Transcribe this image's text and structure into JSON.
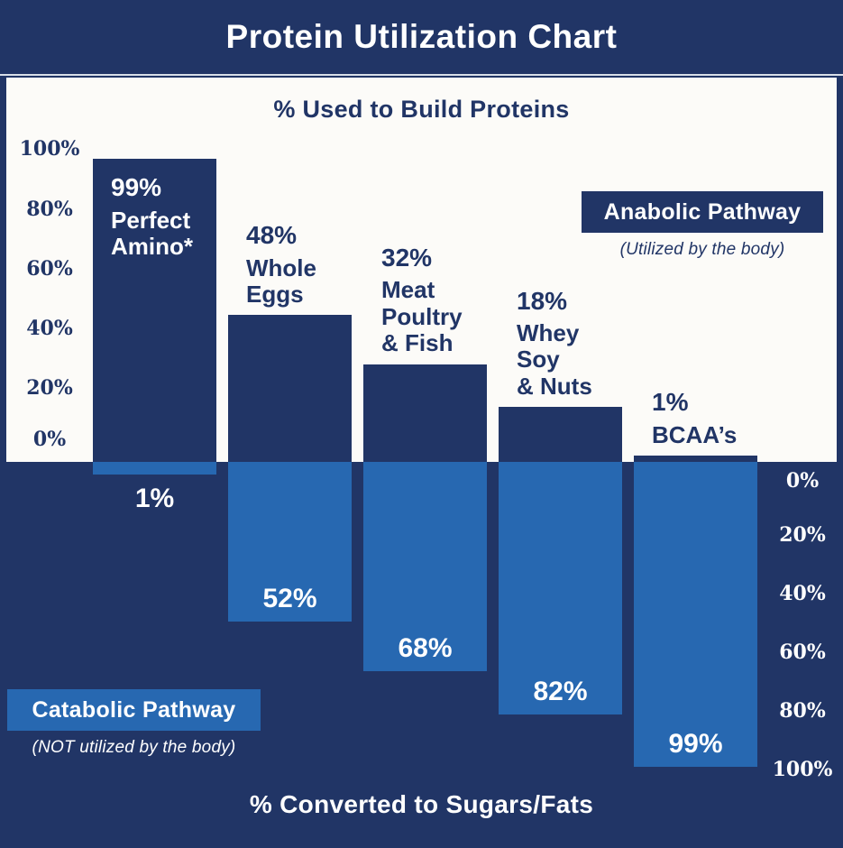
{
  "title": "Protein Utilization Chart",
  "top_section": {
    "axis_title": "% Used to Build Proteins"
  },
  "bottom_section": {
    "axis_title": "% Converted to Sugars/Fats"
  },
  "legend": {
    "anabolic": {
      "label": "Anabolic Pathway",
      "sublabel": "(Utilized by the body)"
    },
    "catabolic": {
      "label": "Catabolic Pathway",
      "sublabel": "(NOT utilized by the body)"
    }
  },
  "bars": [
    {
      "up_pct": "99%",
      "name": "Perfect\nAmino*",
      "down_pct": "1%"
    },
    {
      "up_pct": "48%",
      "name": "Whole\nEggs",
      "down_pct": "52%"
    },
    {
      "up_pct": "32%",
      "name": "Meat\nPoultry\n& Fish",
      "down_pct": "68%"
    },
    {
      "up_pct": "18%",
      "name": "Whey\nSoy\n& Nuts",
      "down_pct": "82%"
    },
    {
      "up_pct": "1%",
      "name": "BCAA’s",
      "down_pct": "99%"
    }
  ],
  "chart_data": {
    "type": "bar",
    "title": "Protein Utilization Chart",
    "categories": [
      "Perfect Amino*",
      "Whole Eggs",
      "Meat Poultry & Fish",
      "Whey Soy & Nuts",
      "BCAA’s"
    ],
    "series": [
      {
        "name": "% Used to Build Proteins (Anabolic Pathway, upward bars)",
        "values": [
          99,
          48,
          32,
          18,
          1
        ]
      },
      {
        "name": "% Converted to Sugars/Fats (Catabolic Pathway, downward bars)",
        "values": [
          1,
          52,
          68,
          82,
          99
        ]
      }
    ],
    "left_axis_ticks": [
      "100%",
      "80%",
      "60%",
      "40%",
      "20%",
      "0%"
    ],
    "right_axis_ticks": [
      "0%",
      "20%",
      "40%",
      "60%",
      "80%",
      "100%"
    ],
    "ylim_up": [
      0,
      100
    ],
    "ylim_down": [
      0,
      100
    ],
    "grid": false,
    "legend_position": "inline-badges",
    "colors": {
      "navy": "#213566",
      "blue": "#2768B1",
      "background_top": "#FCFBF8",
      "background_bottom": "#213566",
      "text_light": "#FFFFFF"
    }
  }
}
